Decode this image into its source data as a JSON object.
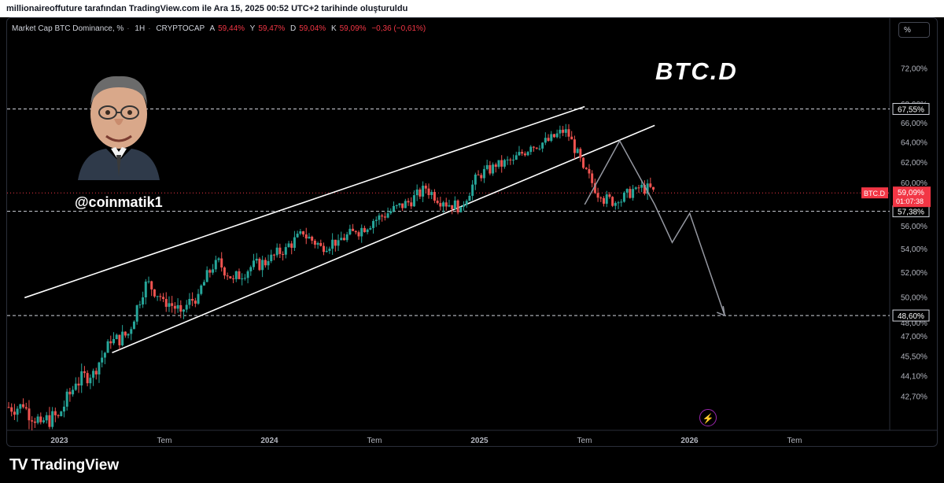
{
  "header": {
    "attribution": "millionaireoffuture tarafından TradingView.com ile Ara 15, 2025 00:52 UTC+2 tarihinde oluşturuldu"
  },
  "legend": {
    "symbol_label": "Market Cap BTC Dominance, %",
    "interval": "1H",
    "exchange": "CRYPTOCAP",
    "open_label": "A",
    "open": "59,44%",
    "high_label": "Y",
    "high": "59,47%",
    "low_label": "D",
    "low": "59,04%",
    "close_label": "K",
    "close": "59,09%",
    "change": "−0,36 (−0,61%)"
  },
  "scale_button": "%",
  "overlay": {
    "big_title": "BTC.D",
    "handle": "@coinmatik1"
  },
  "price_tag": {
    "symbol": "BTC.D",
    "value": "59,09%",
    "countdown": "01:07:38"
  },
  "level_tags": [
    "67,55%",
    "57,38%",
    "48,60%"
  ],
  "branding": {
    "name": "TradingView"
  },
  "colors": {
    "up": "#26a69a",
    "down": "#ef5350",
    "accent": "#f23645"
  },
  "chart_data": {
    "type": "candlestick",
    "title": "Market Cap BTC Dominance, %",
    "y_scale": "log",
    "y_ticks": [
      "72,00%",
      "68,00%",
      "66,00%",
      "64,00%",
      "62,00%",
      "60,00%",
      "58,00%",
      "56,00%",
      "54,00%",
      "52,00%",
      "50,00%",
      "48,00%",
      "47,00%",
      "45,50%",
      "44,10%",
      "42,70%"
    ],
    "x_ticks": [
      "2023",
      "Tem",
      "2024",
      "Tem",
      "2025",
      "Tem",
      "2026",
      "Tem"
    ],
    "horizontal_levels": [
      67.55,
      57.38,
      48.6
    ],
    "last_price": 59.09,
    "close_series": [
      {
        "t": "2022-11",
        "v": 42.0
      },
      {
        "t": "2022-12",
        "v": 41.0
      },
      {
        "t": "2023-01",
        "v": 41.4
      },
      {
        "t": "2023-02",
        "v": 43.6
      },
      {
        "t": "2023-03",
        "v": 44.5
      },
      {
        "t": "2023-04",
        "v": 46.5
      },
      {
        "t": "2023-05",
        "v": 47.2
      },
      {
        "t": "2023-06",
        "v": 51.3
      },
      {
        "t": "2023-07",
        "v": 49.9
      },
      {
        "t": "2023-08",
        "v": 48.9
      },
      {
        "t": "2023-09",
        "v": 50.3
      },
      {
        "t": "2023-10",
        "v": 53.1
      },
      {
        "t": "2023-11",
        "v": 51.5
      },
      {
        "t": "2023-12",
        "v": 52.5
      },
      {
        "t": "2024-01",
        "v": 53.0
      },
      {
        "t": "2024-02",
        "v": 54.2
      },
      {
        "t": "2024-03",
        "v": 55.3
      },
      {
        "t": "2024-04",
        "v": 54.3
      },
      {
        "t": "2024-05",
        "v": 54.8
      },
      {
        "t": "2024-06",
        "v": 55.5
      },
      {
        "t": "2024-07",
        "v": 56.5
      },
      {
        "t": "2024-08",
        "v": 57.4
      },
      {
        "t": "2024-09",
        "v": 58.2
      },
      {
        "t": "2024-10",
        "v": 59.5
      },
      {
        "t": "2024-11",
        "v": 58.2
      },
      {
        "t": "2024-12",
        "v": 57.8
      },
      {
        "t": "2025-01",
        "v": 60.8
      },
      {
        "t": "2025-02",
        "v": 61.6
      },
      {
        "t": "2025-03",
        "v": 62.3
      },
      {
        "t": "2025-04",
        "v": 63.6
      },
      {
        "t": "2025-05",
        "v": 64.2
      },
      {
        "t": "2025-06",
        "v": 65.4
      },
      {
        "t": "2025-07",
        "v": 61.5
      },
      {
        "t": "2025-08",
        "v": 58.6
      },
      {
        "t": "2025-09",
        "v": 58.2
      },
      {
        "t": "2025-10",
        "v": 59.6
      },
      {
        "t": "2025-11",
        "v": 59.4
      }
    ],
    "channel": {
      "upper": [
        [
          "2022-12",
          50.0
        ],
        [
          "2025-08",
          67.8
        ]
      ],
      "lower": [
        [
          "2023-05",
          45.8
        ],
        [
          "2025-12",
          65.8
        ]
      ]
    },
    "projection_path": [
      [
        "2025-08",
        58.0
      ],
      [
        "2025-10",
        64.2
      ],
      [
        "2025-12",
        58.0
      ],
      [
        "2026-01",
        54.6
      ],
      [
        "2026-02",
        57.2
      ],
      [
        "2026-04",
        48.6
      ]
    ]
  }
}
